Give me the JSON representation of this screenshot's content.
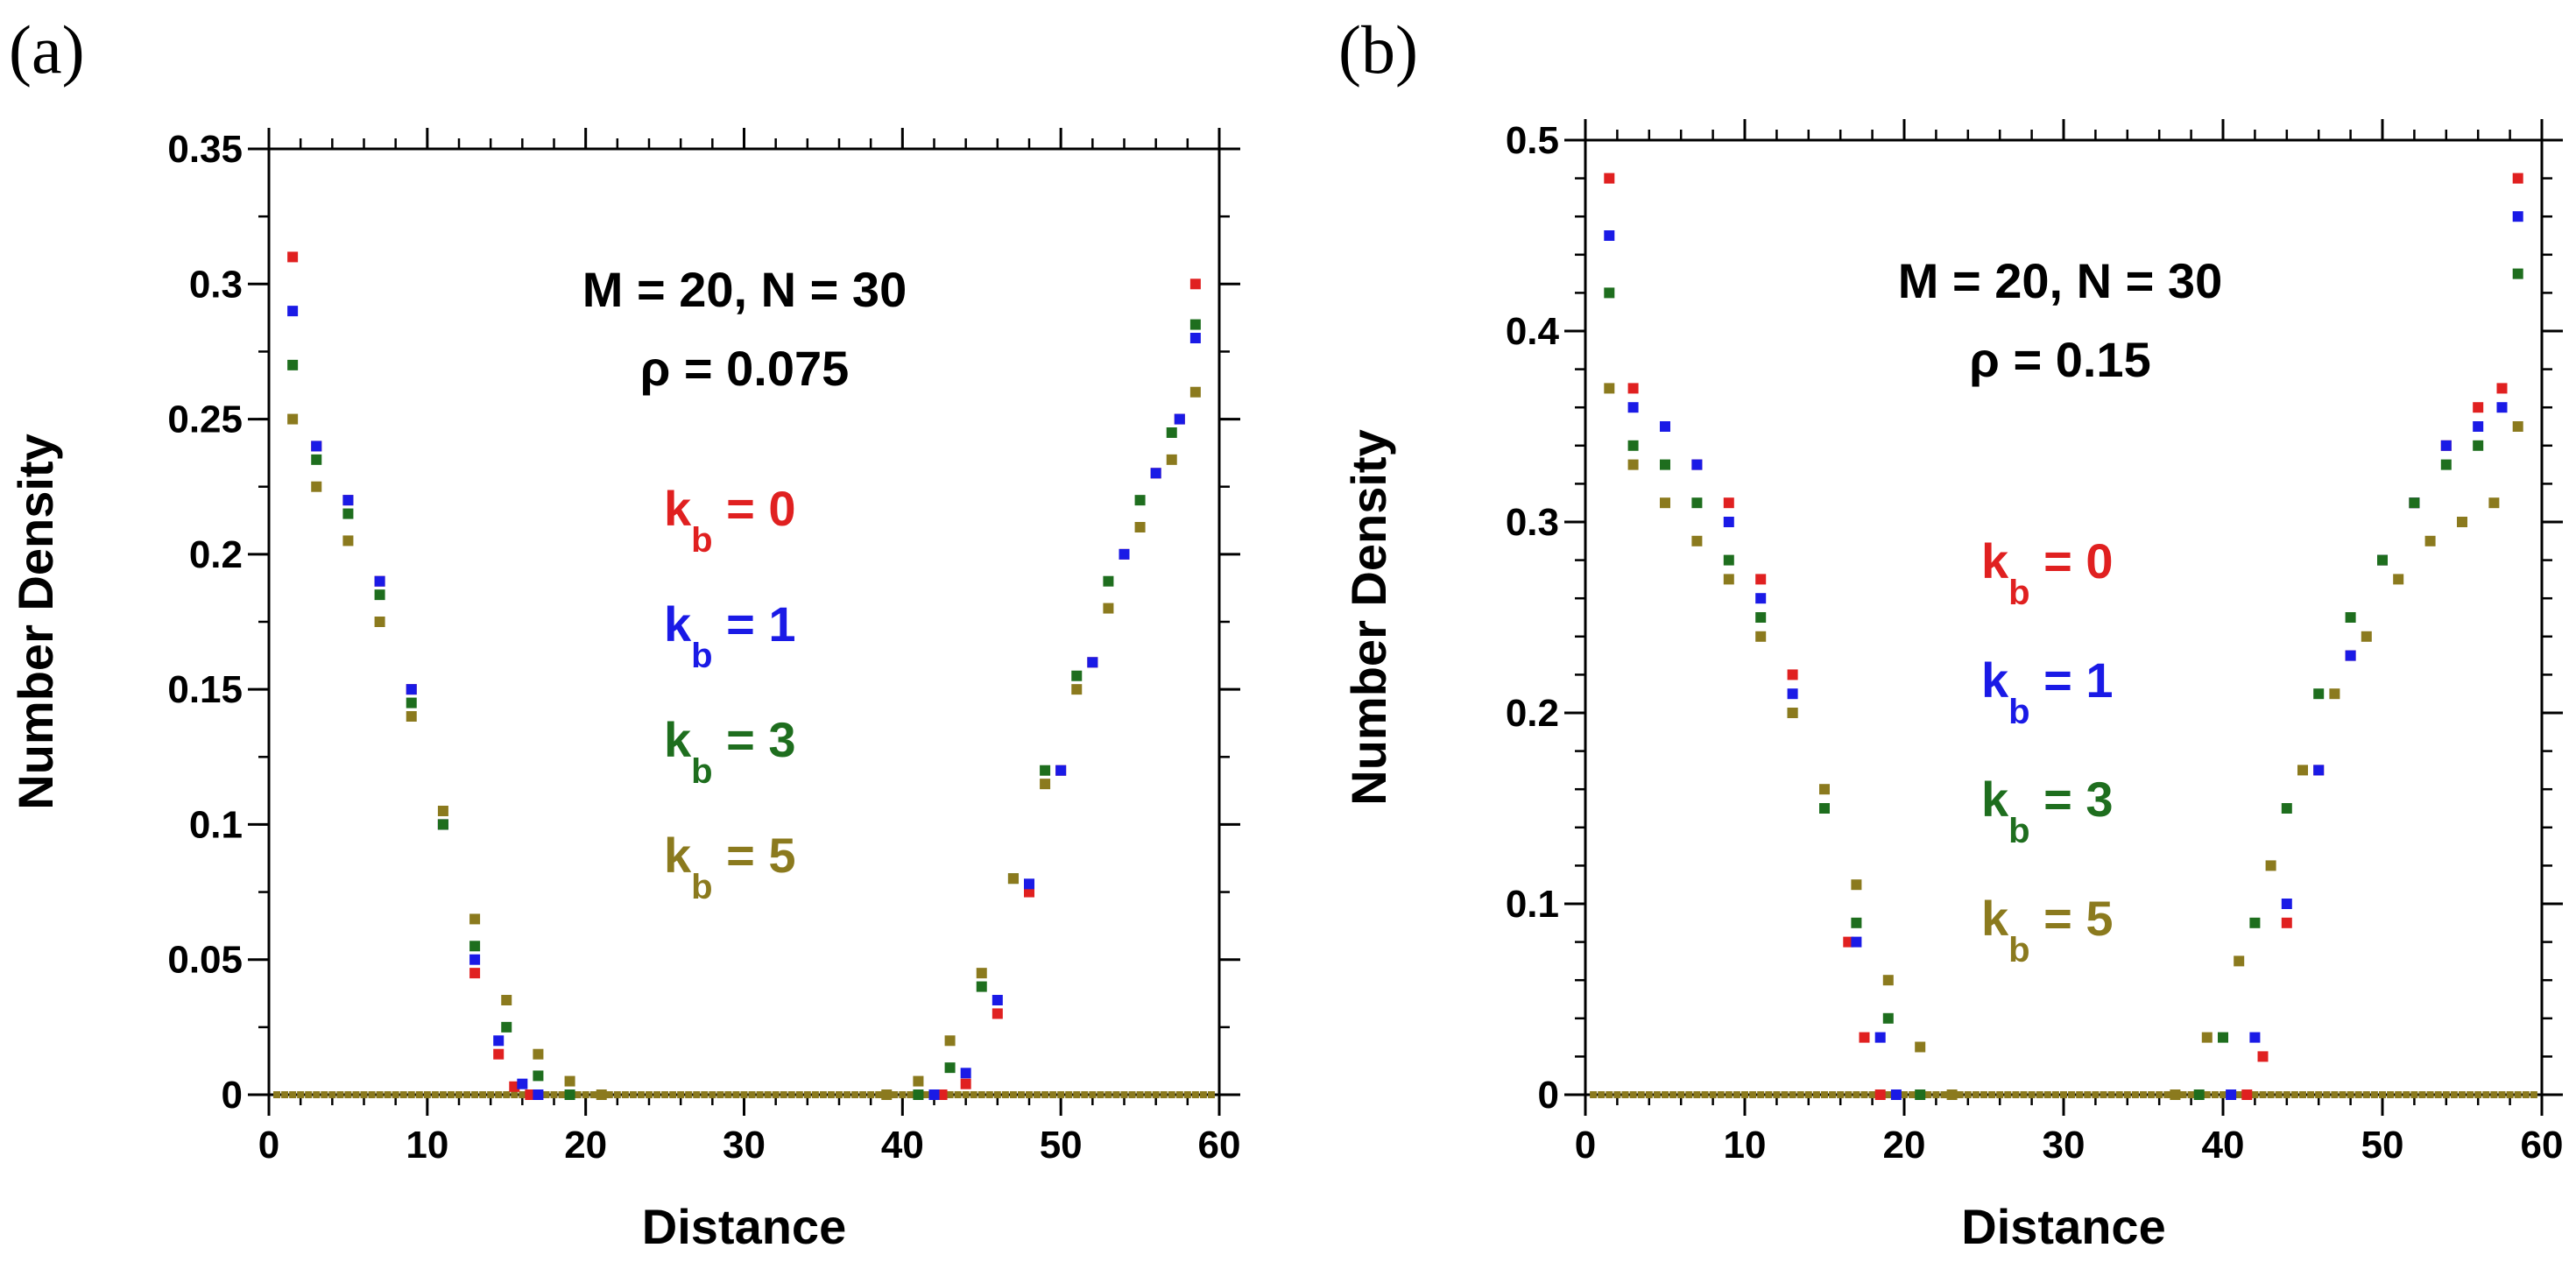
{
  "chart_data": [
    {
      "panel_label": "(a)",
      "type": "scatter",
      "xlabel": "Distance",
      "ylabel": "Number Density",
      "xlim": [
        0,
        60
      ],
      "ylim": [
        0,
        0.35
      ],
      "xticks": [
        "0",
        "10",
        "20",
        "30",
        "40",
        "50",
        "60"
      ],
      "yticks": [
        "0",
        "0.05",
        "0.1",
        "0.15",
        "0.2",
        "0.25",
        "0.3",
        "0.35"
      ],
      "annotation_line1": "M = 20, N = 30",
      "annotation_line2": "ρ = 0.075",
      "series": [
        {
          "name": "k_b = 0",
          "legend_main": "k",
          "legend_sub": "b",
          "legend_value": " = 0",
          "color": "#e02020",
          "x": [
            1.5,
            3,
            5,
            7,
            9,
            11,
            13,
            14.5,
            15.5,
            16.5,
            42.5,
            44,
            46,
            48,
            50,
            52,
            54,
            56,
            57.5,
            58.5
          ],
          "y": [
            0.31,
            0.24,
            0.22,
            0.19,
            0.15,
            0.1,
            0.045,
            0.015,
            0.003,
            0,
            0,
            0.004,
            0.03,
            0.075,
            0.12,
            0.16,
            0.2,
            0.23,
            0.25,
            0.3
          ]
        },
        {
          "name": "k_b = 1",
          "legend_main": "k",
          "legend_sub": "b",
          "legend_value": " = 1",
          "color": "#1a1ae6",
          "x": [
            1.5,
            3,
            5,
            7,
            9,
            11,
            13,
            14.5,
            16,
            17,
            42,
            44,
            46,
            48,
            50,
            52,
            54,
            56,
            57.5,
            58.5
          ],
          "y": [
            0.29,
            0.24,
            0.22,
            0.19,
            0.15,
            0.1,
            0.05,
            0.02,
            0.004,
            0,
            0,
            0.008,
            0.035,
            0.078,
            0.12,
            0.16,
            0.2,
            0.23,
            0.25,
            0.28
          ]
        },
        {
          "name": "k_b = 3",
          "legend_main": "k",
          "legend_sub": "b",
          "legend_value": " = 3",
          "color": "#1e6e1e",
          "x": [
            1.5,
            3,
            5,
            7,
            9,
            11,
            13,
            15,
            17,
            19,
            41,
            43,
            45,
            47,
            49,
            51,
            53,
            55,
            57,
            58.5
          ],
          "y": [
            0.27,
            0.235,
            0.215,
            0.185,
            0.145,
            0.1,
            0.055,
            0.025,
            0.007,
            0,
            0,
            0.01,
            0.04,
            0.08,
            0.12,
            0.155,
            0.19,
            0.22,
            0.245,
            0.285
          ]
        },
        {
          "name": "k_b = 5",
          "legend_main": "k",
          "legend_sub": "b",
          "legend_value": " = 5",
          "color": "#8b7a1e",
          "x": [
            1.5,
            3,
            5,
            7,
            9,
            11,
            13,
            15,
            17,
            19,
            21,
            39,
            41,
            43,
            45,
            47,
            49,
            51,
            53,
            55,
            57,
            58.5
          ],
          "y": [
            0.25,
            0.225,
            0.205,
            0.175,
            0.14,
            0.105,
            0.065,
            0.035,
            0.015,
            0.005,
            0,
            0,
            0.005,
            0.02,
            0.045,
            0.08,
            0.115,
            0.15,
            0.18,
            0.21,
            0.235,
            0.26
          ]
        }
      ]
    },
    {
      "panel_label": "(b)",
      "type": "scatter",
      "xlabel": "Distance",
      "ylabel": "Number Density",
      "xlim": [
        0,
        60
      ],
      "ylim": [
        0,
        0.5
      ],
      "xticks": [
        "0",
        "10",
        "20",
        "30",
        "40",
        "50",
        "60"
      ],
      "yticks": [
        "0",
        "0.1",
        "0.2",
        "0.3",
        "0.4",
        "0.5"
      ],
      "annotation_line1": "M = 20, N = 30",
      "annotation_line2": "ρ = 0.15",
      "series": [
        {
          "name": "k_b = 0",
          "legend_main": "k",
          "legend_sub": "b",
          "legend_value": " = 0",
          "color": "#e02020",
          "x": [
            1.5,
            3,
            5,
            7,
            9,
            11,
            13,
            15,
            16.5,
            17.5,
            18.5,
            41.5,
            42.5,
            44,
            46,
            48,
            50,
            52,
            54,
            56,
            57.5,
            58.5
          ],
          "y": [
            0.48,
            0.37,
            0.35,
            0.33,
            0.31,
            0.27,
            0.22,
            0.15,
            0.08,
            0.03,
            0,
            0,
            0.02,
            0.09,
            0.17,
            0.23,
            0.28,
            0.31,
            0.34,
            0.36,
            0.37,
            0.48
          ]
        },
        {
          "name": "k_b = 1",
          "legend_main": "k",
          "legend_sub": "b",
          "legend_value": " = 1",
          "color": "#1a1ae6",
          "x": [
            1.5,
            3,
            5,
            7,
            9,
            11,
            13,
            15,
            17,
            18.5,
            19.5,
            40.5,
            42,
            44,
            46,
            48,
            50,
            52,
            54,
            56,
            57.5,
            58.5
          ],
          "y": [
            0.45,
            0.36,
            0.35,
            0.33,
            0.3,
            0.26,
            0.21,
            0.15,
            0.08,
            0.03,
            0,
            0,
            0.03,
            0.1,
            0.17,
            0.23,
            0.28,
            0.31,
            0.34,
            0.35,
            0.36,
            0.46
          ]
        },
        {
          "name": "k_b = 3",
          "legend_main": "k",
          "legend_sub": "b",
          "legend_value": " = 3",
          "color": "#1e6e1e",
          "x": [
            1.5,
            3,
            5,
            7,
            9,
            11,
            13,
            15,
            17,
            19,
            21,
            38.5,
            40,
            42,
            44,
            46,
            48,
            50,
            52,
            54,
            56,
            58.5
          ],
          "y": [
            0.42,
            0.34,
            0.33,
            0.31,
            0.28,
            0.25,
            0.2,
            0.15,
            0.09,
            0.04,
            0,
            0,
            0.03,
            0.09,
            0.15,
            0.21,
            0.25,
            0.28,
            0.31,
            0.33,
            0.34,
            0.43
          ]
        },
        {
          "name": "k_b = 5",
          "legend_main": "k",
          "legend_sub": "b",
          "legend_value": " = 5",
          "color": "#8b7a1e",
          "x": [
            1.5,
            3,
            5,
            7,
            9,
            11,
            13,
            15,
            17,
            19,
            21,
            23,
            37,
            39,
            41,
            43,
            45,
            47,
            49,
            51,
            53,
            55,
            57,
            58.5
          ],
          "y": [
            0.37,
            0.33,
            0.31,
            0.29,
            0.27,
            0.24,
            0.2,
            0.16,
            0.11,
            0.06,
            0.025,
            0,
            0,
            0.03,
            0.07,
            0.12,
            0.17,
            0.21,
            0.24,
            0.27,
            0.29,
            0.3,
            0.31,
            0.35
          ]
        }
      ]
    }
  ]
}
